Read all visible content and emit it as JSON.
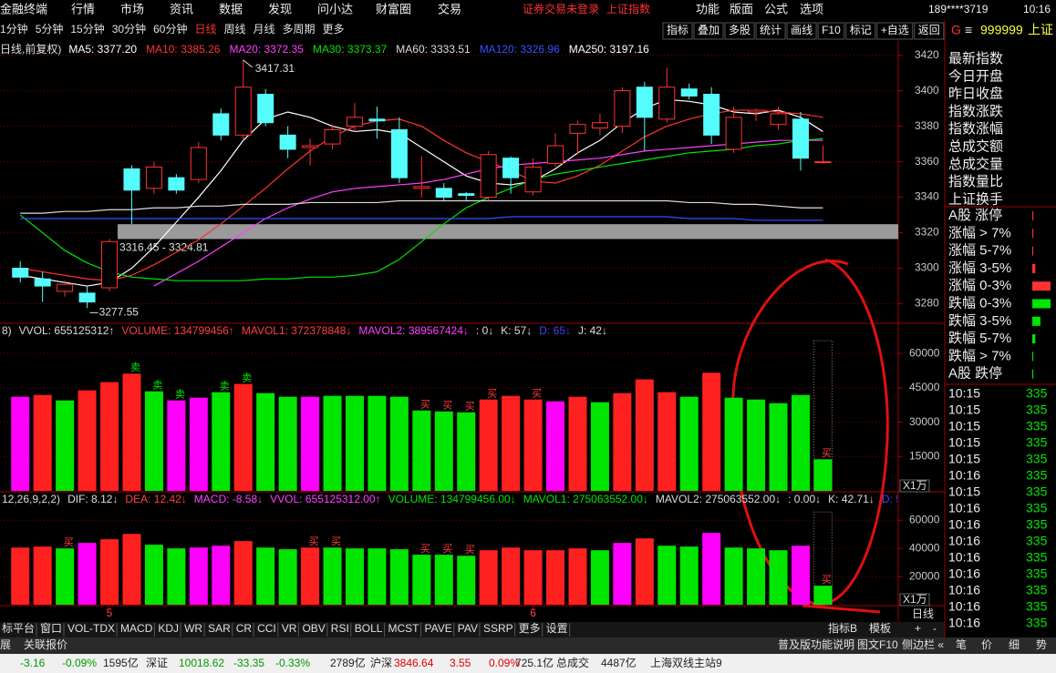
{
  "top_bar": {
    "menu": [
      "金融终端",
      "行情",
      "市场",
      "资讯",
      "数据",
      "发现",
      "问小达",
      "财富圈",
      "交易"
    ],
    "notice": "证券交易未登录",
    "index_name": "上证指数",
    "tools": [
      "功能",
      "版面",
      "公式",
      "选项"
    ],
    "user": "189****3719",
    "time": "10:16"
  },
  "periods": {
    "items": [
      "1分钟",
      "5分钟",
      "15分钟",
      "30分钟",
      "60分钟",
      "日线",
      "周线",
      "月线",
      "多周期",
      "更多"
    ],
    "selected": 5
  },
  "buttons": [
    "指标",
    "叠加",
    "多股",
    "统计",
    "画线",
    "F10",
    "标记",
    "+自选",
    "返回"
  ],
  "quote_header": {
    "prefix": "G",
    "menu": "≡",
    "symbol": "999999",
    "name": "上证"
  },
  "quote_fields": [
    "最新指数",
    "今日开盘",
    "昨日收盘",
    "指数涨跌",
    "指数涨幅",
    "总成交额",
    "总成交量",
    "指数量比",
    "上证换手"
  ],
  "breadth": {
    "labels": [
      "A股 涨停",
      "涨幅 > 7%",
      "涨幅 5-7%",
      "涨幅 3-5%",
      "涨幅 0-3%",
      "跌幅 0-3%",
      "跌幅 3-5%",
      "跌幅 5-7%",
      "跌幅 > 7%",
      "A股 跌停"
    ],
    "values": [
      1,
      1,
      1,
      3,
      18,
      18,
      8,
      3,
      1,
      1
    ],
    "colors": [
      "#ff3232",
      "#ff3232",
      "#ff3232",
      "#ff3232",
      "#ff3232",
      "#00e600",
      "#00e600",
      "#00e600",
      "#00e600",
      "#00e600"
    ]
  },
  "trades": {
    "times": [
      "10:15",
      "10:15",
      "10:15",
      "10:15",
      "10:15",
      "10:16",
      "10:15",
      "10:16",
      "10:16",
      "10:16",
      "10:16",
      "10:16",
      "10:16",
      "10:16",
      "10:16"
    ],
    "prices": [
      335,
      335,
      335,
      335,
      335,
      335,
      335,
      335,
      335,
      335,
      335,
      335,
      335,
      335,
      335
    ]
  },
  "chart_data": [
    {
      "type": "candlestick",
      "legend_prefix": "日线,前复权)",
      "open": [
        3300,
        3294,
        3287,
        3286,
        3289,
        3356,
        3345,
        3351,
        3350,
        3387,
        3375,
        3398,
        3375,
        3368,
        3370,
        3380,
        3384,
        3378,
        3345,
        3345,
        3342,
        3340,
        3362,
        3343,
        3359,
        3376,
        3379,
        3380,
        3402,
        3384,
        3401,
        3398,
        3367,
        3388,
        3381,
        3384,
        3360
      ],
      "close": [
        3295,
        3290,
        3291,
        3281,
        3315,
        3344,
        3357,
        3344,
        3368,
        3375,
        3402,
        3382,
        3367,
        3369,
        3378,
        3385,
        3383,
        3351,
        3346,
        3340,
        3341,
        3364,
        3351,
        3357,
        3369,
        3381,
        3382,
        3400,
        3385,
        3402,
        3397,
        3375,
        3385,
        3389,
        3387,
        3362,
        3360
      ],
      "high": [
        3304,
        3298,
        3293,
        3290,
        3316.45,
        3358,
        3360,
        3353,
        3371,
        3390,
        3417.31,
        3401,
        3380,
        3373,
        3381,
        3393,
        3391,
        3385,
        3363,
        3348,
        3343,
        3366,
        3363,
        3362,
        3376,
        3383,
        3387,
        3402,
        3405,
        3413,
        3404,
        3402,
        3391,
        3390,
        3391,
        3388,
        3369
      ],
      "low": [
        3292,
        3281,
        3284,
        3277.55,
        3287,
        3324.81,
        3342,
        3342,
        3348,
        3372,
        3372,
        3380,
        3362,
        3358,
        3367,
        3377,
        3373,
        3348,
        3340,
        3338,
        3338,
        3338,
        3342,
        3341,
        3357,
        3364,
        3375,
        3376,
        3366,
        3382,
        3395,
        3370,
        3365,
        3383,
        3378,
        3355,
        3359
      ],
      "up_color": "#ff3232",
      "down_color": "#54fcfc",
      "series": [
        {
          "name": "MA5: 3377.20",
          "color": "#ffffff",
          "values": [
            3296,
            3294,
            3292,
            3290,
            3292,
            3300,
            3312,
            3326,
            3340,
            3355,
            3372,
            3384,
            3388,
            3385,
            3380,
            3377,
            3378,
            3376,
            3368,
            3360,
            3352,
            3348,
            3347,
            3349,
            3356,
            3365,
            3372,
            3382,
            3390,
            3395,
            3394,
            3392,
            3388,
            3387,
            3389,
            3385,
            3377
          ]
        },
        {
          "name": "MA10: 3385.26",
          "color": "#ff3232",
          "values": [
            3300,
            3298,
            3296,
            3294,
            3293,
            3296,
            3302,
            3309,
            3316,
            3325,
            3335,
            3345,
            3356,
            3366,
            3374,
            3380,
            3383,
            3384,
            3380,
            3372,
            3365,
            3360,
            3355,
            3349,
            3348,
            3352,
            3358,
            3366,
            3374,
            3380,
            3384,
            3387,
            3389,
            3389,
            3388,
            3387,
            3385
          ]
        },
        {
          "name": "MA20: 3372.35",
          "color": "#ff40ff",
          "values": [
            null,
            null,
            null,
            null,
            null,
            null,
            3290,
            3297,
            3304,
            3312,
            3320,
            3328,
            3334,
            3339,
            3343,
            3345,
            3346,
            3347,
            3348,
            3350,
            3353,
            3356,
            3358,
            3359,
            3360,
            3361,
            3362,
            3364,
            3366,
            3367,
            3368,
            3369,
            3370,
            3371,
            3372,
            3372,
            3372
          ]
        },
        {
          "name": "MA30: 3373.37",
          "color": "#00e600",
          "values": [
            3330,
            3320,
            3310,
            3303,
            3298,
            3295,
            3294,
            3293,
            3293,
            3293,
            3293,
            3294,
            3294,
            3295,
            3295,
            3296,
            3298,
            3305,
            3315,
            3325,
            3334,
            3340,
            3345,
            3350,
            3353,
            3355,
            3357,
            3359,
            3361,
            3363,
            3365,
            3366,
            3367,
            3369,
            3370,
            3372,
            3373
          ]
        },
        {
          "name": "MA60: 3333.51",
          "color": "#dddddd",
          "values": [
            3331,
            3331,
            3332,
            3332,
            3333,
            3333,
            3334,
            3334,
            3335,
            3335,
            3336,
            3336,
            3336,
            3337,
            3337,
            3337,
            3337,
            3338,
            3338,
            3338,
            3338,
            3338,
            3338,
            3338,
            3338,
            3338,
            3338,
            3338,
            3338,
            3338,
            3337,
            3337,
            3336,
            3336,
            3335,
            3334,
            3334
          ]
        },
        {
          "name": "MA120: 3326.96",
          "color": "#3050ff",
          "values": [
            3328,
            3328,
            3328,
            3328,
            3328,
            3328,
            3328,
            3328,
            3328,
            3328,
            3328,
            3328,
            3328,
            3328,
            3328,
            3328,
            3328,
            3328,
            3328,
            3328,
            3328,
            3328,
            3329,
            3329,
            3329,
            3329,
            3329,
            3329,
            3329,
            3329,
            3328,
            3328,
            3328,
            3327,
            3327,
            3327,
            3327
          ]
        },
        {
          "name": "MA250: 3197.16",
          "color": "#ffffff",
          "values": [
            null,
            null,
            null,
            null,
            null,
            null,
            null,
            null,
            null,
            null,
            null,
            null,
            null,
            null,
            null,
            null,
            null,
            null,
            null,
            null,
            null,
            null,
            null,
            null,
            null,
            null,
            null,
            null,
            null,
            null,
            null,
            null,
            null,
            null,
            null,
            null,
            null
          ]
        }
      ],
      "high_label": "3417.31",
      "low_label": "3277.55",
      "gap": {
        "label": "3316.45 - 3324.81",
        "range": [
          3316.45,
          3324.81
        ]
      },
      "ylim": [
        3269,
        3428
      ],
      "yticks": [
        3420,
        3400,
        3380,
        3360,
        3340,
        3320,
        3300,
        3280
      ],
      "grid": true
    },
    {
      "type": "bar",
      "header": [
        {
          "text": "8)",
          "color": "#dddddd"
        },
        {
          "text": "VVOL: 655125312↑",
          "color": "#dddddd"
        },
        {
          "text": "VOLUME: 134799456↑",
          "color": "#ff4040"
        },
        {
          "text": "MAVOL1: 372378848↓",
          "color": "#ff4040"
        },
        {
          "text": "MAVOL2: 389567424↓",
          "color": "#ff40ff"
        },
        {
          "text": ": 0↓",
          "color": "#dddddd"
        },
        {
          "text": "K: 57↓",
          "color": "#dddddd"
        },
        {
          "text": "D: 65↓",
          "color": "#4040ff"
        },
        {
          "text": "J: 42↓",
          "color": "#dddddd"
        }
      ],
      "values": [
        41100,
        41900,
        39500,
        43900,
        47500,
        51200,
        43500,
        39500,
        40700,
        43100,
        46700,
        42700,
        41100,
        41100,
        41500,
        41500,
        41500,
        41100,
        35100,
        34700,
        34300,
        39900,
        41500,
        39900,
        39100,
        41100,
        38700,
        42700,
        48700,
        43100,
        41100,
        51600,
        40700,
        39900,
        38300,
        41900,
        13800
      ],
      "colors": [
        "#ff00ff",
        "#ff2020",
        "#00e600",
        "#ff2020",
        "#ff2020",
        "#ff2020",
        "#00e600",
        "#ff00ff",
        "#ff00ff",
        "#00e600",
        "#ff2020",
        "#00e600",
        "#00e600",
        "#ff00ff",
        "#00e600",
        "#00e600",
        "#00e600",
        "#00e600",
        "#00e600",
        "#00e600",
        "#00e600",
        "#ff2020",
        "#ff2020",
        "#ff2020",
        "#ff00ff",
        "#ff2020",
        "#00e600",
        "#ff2020",
        "#ff2020",
        "#ff2020",
        "#00e600",
        "#ff2020",
        "#00e600",
        "#00e600",
        "#00e600",
        "#00e600",
        "#00e600"
      ],
      "signals": [
        null,
        null,
        null,
        null,
        null,
        "卖",
        "卖",
        "卖",
        null,
        "卖",
        "卖",
        null,
        null,
        null,
        null,
        null,
        null,
        null,
        "买",
        "买",
        "买",
        "买",
        null,
        "买",
        null,
        null,
        null,
        null,
        null,
        null,
        null,
        null,
        null,
        null,
        null,
        null,
        "买"
      ],
      "projected": 65600,
      "unit": "X1万",
      "ylim": [
        0,
        72000
      ],
      "yticks": [
        60000,
        45000,
        30000,
        15000
      ],
      "grid": true
    },
    {
      "type": "bar",
      "header": [
        {
          "text": "12,26,9,2,2)",
          "color": "#dddddd"
        },
        {
          "text": "DIF: 8.12↓",
          "color": "#dddddd"
        },
        {
          "text": "DEA: 12.42↓",
          "color": "#ff4040"
        },
        {
          "text": "MACD: -8.58↓",
          "color": "#ff40ff"
        },
        {
          "text": "VVOL: 655125312.00↑",
          "color": "#ff40ff"
        },
        {
          "text": "VOLUME: 134799456.00↓",
          "color": "#00e600"
        },
        {
          "text": "MAVOL1: 275063552.00↓",
          "color": "#00e600"
        },
        {
          "text": "MAVOL2: 275063552.00↓",
          "color": "#dddddd"
        },
        {
          "text": ": 0.00↓",
          "color": "#dddddd"
        },
        {
          "text": "K: 42.71↓",
          "color": "#dddddd"
        },
        {
          "text": "D: 5",
          "color": "#4040ff"
        }
      ],
      "categories": [
        null,
        null,
        null,
        null,
        "5",
        null,
        null,
        null,
        null,
        null,
        null,
        null,
        null,
        null,
        null,
        null,
        null,
        null,
        null,
        null,
        null,
        null,
        null,
        "6",
        null,
        null,
        null,
        null,
        null,
        null,
        null,
        null,
        null,
        null,
        null,
        null,
        null
      ],
      "values": [
        40600,
        41300,
        40000,
        43900,
        46500,
        50300,
        42600,
        40000,
        40600,
        41900,
        45200,
        40600,
        39400,
        40600,
        40600,
        40000,
        40000,
        39400,
        35500,
        35500,
        34800,
        38700,
        40600,
        38700,
        38700,
        40000,
        38700,
        43900,
        47100,
        41900,
        41300,
        51000,
        40600,
        40000,
        38700,
        41900,
        13500
      ],
      "colors": [
        "#ff2020",
        "#ff2020",
        "#00e600",
        "#ff00ff",
        "#ff2020",
        "#ff2020",
        "#00e600",
        "#00e600",
        "#ff00ff",
        "#ff00ff",
        "#ff2020",
        "#00e600",
        "#00e600",
        "#ff2020",
        "#00e600",
        "#00e600",
        "#00e600",
        "#00e600",
        "#00e600",
        "#00e600",
        "#00e600",
        "#ff2020",
        "#ff2020",
        "#ff2020",
        "#ff2020",
        "#ff2020",
        "#00e600",
        "#ff00ff",
        "#ff2020",
        "#00e600",
        "#00e600",
        "#ff00ff",
        "#00e600",
        "#00e600",
        "#00e600",
        "#ff00ff",
        "#00e600"
      ],
      "signals": [
        null,
        null,
        "买",
        null,
        null,
        null,
        null,
        null,
        null,
        null,
        null,
        null,
        null,
        "买",
        "买",
        null,
        null,
        null,
        "买",
        "买",
        "买",
        null,
        null,
        null,
        null,
        null,
        null,
        null,
        null,
        null,
        null,
        null,
        null,
        null,
        null,
        null,
        "买"
      ],
      "projected": 65800,
      "unit": "X1万",
      "ylim": [
        0,
        77000
      ],
      "yticks": [
        60000,
        40000,
        20000
      ],
      "grid": true
    }
  ],
  "indicator_tabs": [
    "标平台",
    "窗口",
    "VOL-TDX",
    "MACD",
    "KDJ",
    "WR",
    "SAR",
    "CR",
    "CCI",
    "VR",
    "OBV",
    "RSI",
    "BOLL",
    "MCST",
    "PAVE",
    "PAV",
    "SSRP",
    "更多",
    "设置"
  ],
  "tab_tools": [
    "指标B",
    "模板",
    "+",
    "-"
  ],
  "period_label": "日线",
  "status": {
    "left": [
      "展",
      "关联报价"
    ],
    "right": [
      "普及版功能说明",
      "图文F10",
      "侧边栏 «"
    ],
    "icons": [
      "笔",
      "价",
      "细",
      "势"
    ]
  },
  "ticker": [
    {
      "text": "-3.16",
      "color": "#009a00"
    },
    {
      "text": "-0.09%",
      "color": "#009a00"
    },
    {
      "text": "1595亿",
      "color": "#222222"
    },
    {
      "text": "深证",
      "color": "#222222"
    },
    {
      "text": "10018.62",
      "color": "#009a00"
    },
    {
      "text": "-33.35",
      "color": "#009a00"
    },
    {
      "text": "-0.33%",
      "color": "#009a00"
    },
    {
      "text": "2789亿",
      "color": "#222222"
    },
    {
      "text": "沪深",
      "color": "#222222"
    },
    {
      "text": "3846.64",
      "color": "#e00000"
    },
    {
      "text": "3.55",
      "color": "#e00000"
    },
    {
      "text": "0.09%",
      "color": "#e00000"
    },
    {
      "text": "725.1亿",
      "color": "#222222"
    },
    {
      "text": "总成交",
      "color": "#222222"
    },
    {
      "text": "4487亿",
      "color": "#222222"
    },
    {
      "text": "上海双线主站9",
      "color": "#222222"
    }
  ]
}
